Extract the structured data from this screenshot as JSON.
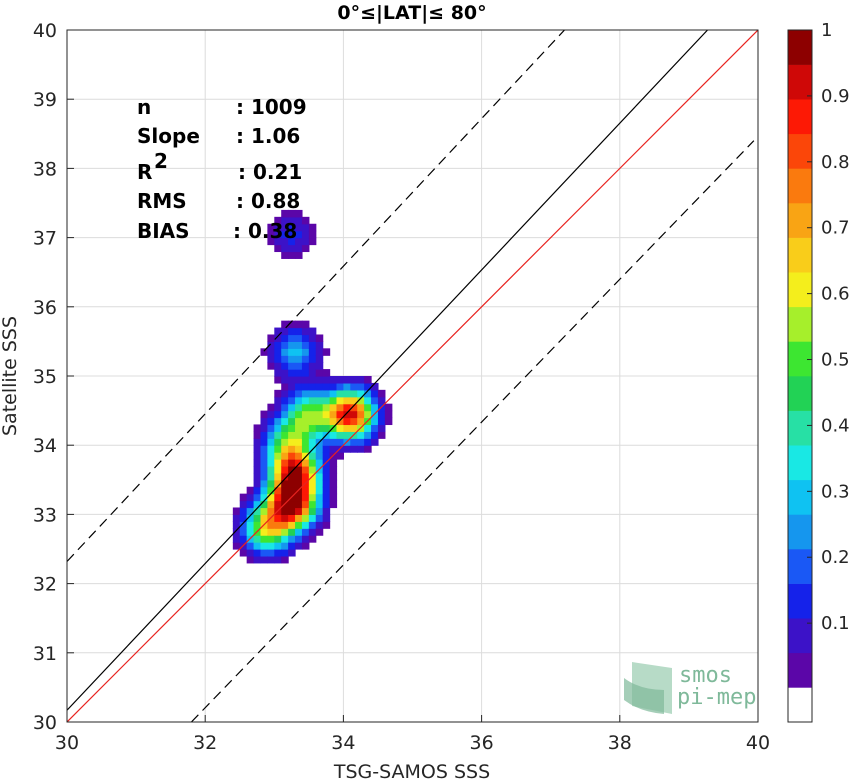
{
  "chart_data": {
    "type": "scatter",
    "title": "0°≤|LAT|≤ 80°",
    "xlabel": "TSG-SAMOS SSS",
    "ylabel": "Satellite SSS",
    "xlim": [
      30,
      40
    ],
    "ylim": [
      30,
      40
    ],
    "xticks": [
      30,
      32,
      34,
      36,
      38,
      40
    ],
    "yticks": [
      30,
      31,
      32,
      33,
      34,
      35,
      36,
      37,
      38,
      39,
      40
    ],
    "grid": true,
    "stats": [
      {
        "label": "n",
        "value": ": 1009"
      },
      {
        "label": "Slope",
        "value": ": 1.06"
      },
      {
        "label": "R",
        "sup": "2",
        "value": ": 0.21"
      },
      {
        "label": "RMS",
        "value": ": 0.88"
      },
      {
        "label": "BIAS",
        "value": ": 0.38"
      }
    ],
    "lines": [
      {
        "kind": "identity",
        "color": "#e8231f",
        "points": [
          [
            30,
            30
          ],
          [
            40,
            40
          ]
        ]
      },
      {
        "kind": "regression",
        "color": "#000000",
        "points": [
          [
            30,
            30.17
          ],
          [
            39.27,
            40
          ]
        ]
      },
      {
        "kind": "upper-bound",
        "color": "#000000",
        "dash": true,
        "points": [
          [
            30,
            32.32
          ],
          [
            37.2,
            40
          ]
        ]
      },
      {
        "kind": "lower-bound",
        "color": "#000000",
        "dash": true,
        "points": [
          [
            31.8,
            30
          ],
          [
            39.94,
            38.4
          ]
        ]
      }
    ],
    "density_peaks": [
      {
        "x": 33.25,
        "y": 33.15,
        "amp": 1.0
      },
      {
        "x": 33.3,
        "y": 33.6,
        "amp": 0.85
      },
      {
        "x": 34.1,
        "y": 34.45,
        "amp": 0.95
      },
      {
        "x": 33.5,
        "y": 34.45,
        "amp": 0.5
      },
      {
        "x": 33.2,
        "y": 34.05,
        "amp": 0.45
      },
      {
        "x": 32.9,
        "y": 32.8,
        "amp": 0.6
      },
      {
        "x": 33.3,
        "y": 35.35,
        "amp": 0.3
      },
      {
        "x": 33.25,
        "y": 37.05,
        "amp": 0.15
      }
    ],
    "colorbar": {
      "ticks": [
        "0.1",
        "0.2",
        "0.3",
        "0.4",
        "0.5",
        "0.6",
        "0.7",
        "0.8",
        "0.9",
        "1"
      ],
      "levels": [
        "#ffffff",
        "#5b06a8",
        "#3c12c8",
        "#1522ea",
        "#1a58f5",
        "#1596ee",
        "#0fc2f2",
        "#19e8e4",
        "#27e0a5",
        "#22d255",
        "#3de631",
        "#a6ef2b",
        "#f4ee1c",
        "#f9cd1a",
        "#f9a414",
        "#fa7a0e",
        "#fb4609",
        "#fd1905",
        "#cf0807",
        "#8d0000"
      ]
    }
  },
  "logo": {
    "line1": "smos",
    "line2": "pi-mep"
  }
}
